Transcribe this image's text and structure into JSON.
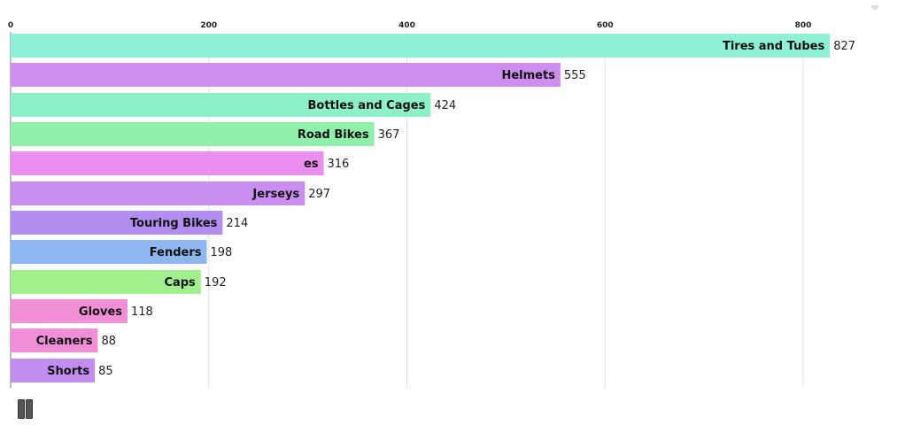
{
  "chart_data": {
    "type": "bar",
    "orientation": "horizontal",
    "xlim": [
      0,
      870
    ],
    "ticks": [
      0,
      200,
      400,
      600,
      800
    ],
    "grid": true,
    "bars": [
      {
        "label": "Tires and Tubes",
        "value": 827,
        "color": "#8ef0d4"
      },
      {
        "label": "Helmets",
        "value": 555,
        "color": "#cd8ef0"
      },
      {
        "label": "Bottles and Cages",
        "value": 424,
        "color": "#8ef0c9"
      },
      {
        "label": "Road Bikes",
        "value": 367,
        "color": "#8ef0aa"
      },
      {
        "label": "es",
        "value": 316,
        "color": "#ec8ef0"
      },
      {
        "label": "Jerseys",
        "value": 297,
        "color": "#c98ef0"
      },
      {
        "label": "Touring Bikes",
        "value": 214,
        "color": "#b18ef0"
      },
      {
        "label": "Fenders",
        "value": 198,
        "color": "#8eb6f0"
      },
      {
        "label": "Caps",
        "value": 192,
        "color": "#a0f08e"
      },
      {
        "label": "Gloves",
        "value": 118,
        "color": "#f08ed6"
      },
      {
        "label": "Shorts",
        "value": 85,
        "color": "#c48ef0"
      },
      {
        "label": "Cleaners",
        "value": 88,
        "color": "#f08ed8"
      }
    ]
  },
  "controls": {
    "pause_icon": "pause-icon",
    "menu_icon": "menu-icon"
  }
}
